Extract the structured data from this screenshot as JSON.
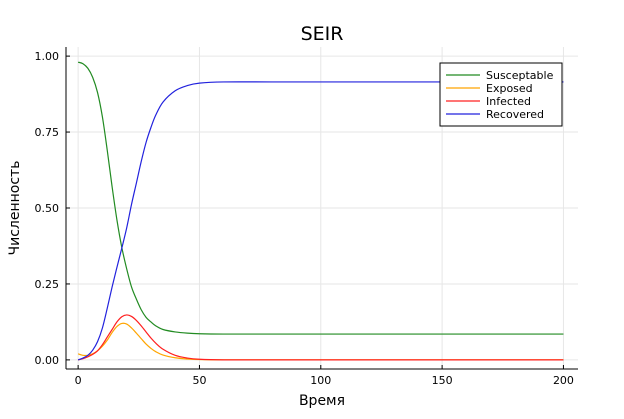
{
  "chart_data": {
    "type": "line",
    "title": "SEIR",
    "xlabel": "Время",
    "ylabel": "Численность",
    "xlim": [
      -5,
      206
    ],
    "ylim": [
      -0.03,
      1.03
    ],
    "xticks": [
      0,
      50,
      100,
      150,
      200
    ],
    "yticks": [
      0.0,
      0.25,
      0.5,
      0.75,
      1.0
    ],
    "xtick_labels": [
      "0",
      "50",
      "100",
      "150",
      "200"
    ],
    "ytick_labels": [
      "0.00",
      "0.25",
      "0.50",
      "0.75",
      "1.00"
    ],
    "grid": true,
    "legend_position": "top-right",
    "series": [
      {
        "name": "Susceptable",
        "color": "#228b22",
        "x": [
          0,
          2,
          4,
          6,
          8,
          10,
          12,
          14,
          16,
          18,
          20,
          22,
          24,
          26,
          28,
          30,
          32,
          35,
          40,
          45,
          50,
          60,
          80,
          100,
          150,
          200
        ],
        "y": [
          0.98,
          0.975,
          0.96,
          0.93,
          0.88,
          0.8,
          0.69,
          0.57,
          0.46,
          0.37,
          0.3,
          0.24,
          0.2,
          0.165,
          0.14,
          0.125,
          0.112,
          0.1,
          0.092,
          0.088,
          0.086,
          0.085,
          0.085,
          0.085,
          0.085,
          0.085
        ]
      },
      {
        "name": "Exposed",
        "color": "#ffa500",
        "x": [
          0,
          2,
          4,
          6,
          8,
          10,
          12,
          14,
          16,
          18,
          20,
          22,
          24,
          26,
          28,
          30,
          32,
          35,
          40,
          45,
          50,
          60,
          80,
          100,
          150,
          200
        ],
        "y": [
          0.02,
          0.015,
          0.015,
          0.02,
          0.03,
          0.045,
          0.065,
          0.09,
          0.11,
          0.12,
          0.118,
          0.105,
          0.088,
          0.07,
          0.052,
          0.038,
          0.027,
          0.016,
          0.007,
          0.003,
          0.001,
          0.0,
          0.0,
          0.0,
          0.0,
          0.0
        ]
      },
      {
        "name": "Infected",
        "color": "#ff2020",
        "x": [
          0,
          2,
          4,
          6,
          8,
          10,
          12,
          14,
          16,
          18,
          20,
          22,
          24,
          26,
          28,
          30,
          32,
          35,
          40,
          45,
          50,
          60,
          80,
          100,
          150,
          200
        ],
        "y": [
          0.0,
          0.004,
          0.01,
          0.018,
          0.03,
          0.05,
          0.075,
          0.1,
          0.125,
          0.142,
          0.148,
          0.143,
          0.13,
          0.112,
          0.092,
          0.072,
          0.055,
          0.035,
          0.015,
          0.006,
          0.002,
          0.0,
          0.0,
          0.0,
          0.0,
          0.0
        ]
      },
      {
        "name": "Recovered",
        "color": "#2222dd",
        "x": [
          0,
          2,
          4,
          6,
          8,
          10,
          12,
          14,
          16,
          18,
          20,
          22,
          24,
          26,
          28,
          30,
          32,
          35,
          40,
          45,
          50,
          60,
          80,
          100,
          150,
          200
        ],
        "y": [
          0.0,
          0.006,
          0.015,
          0.032,
          0.06,
          0.105,
          0.17,
          0.24,
          0.305,
          0.368,
          0.434,
          0.512,
          0.582,
          0.653,
          0.716,
          0.765,
          0.806,
          0.849,
          0.886,
          0.903,
          0.911,
          0.915,
          0.915,
          0.915,
          0.915,
          0.915
        ]
      }
    ]
  }
}
